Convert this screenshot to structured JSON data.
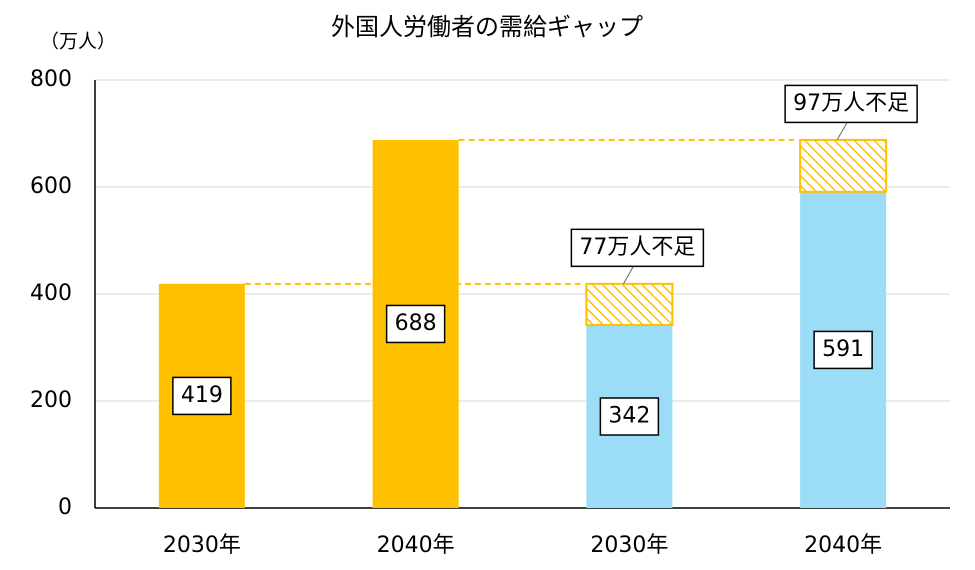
{
  "chart_data": {
    "type": "bar",
    "title": "外国人労働者の需給ギャップ",
    "y_unit_label": "（万人）",
    "categories": [
      "2030年",
      "2040年",
      "2030年",
      "2040年"
    ],
    "series": [
      {
        "color": "#FFC000",
        "values": [
          419,
          688,
          null,
          null
        ]
      },
      {
        "color": "#9BDDF6",
        "values": [
          null,
          null,
          342,
          591
        ]
      },
      {
        "color": "#FFC000",
        "fill": "hatch",
        "values": [
          null,
          null,
          77,
          97
        ],
        "value_labels": [
          null,
          null,
          "77万人不足",
          "97万人不足"
        ]
      }
    ],
    "ylim": [
      0,
      800
    ],
    "yticks": [
      0,
      200,
      400,
      600,
      800
    ],
    "grid": true
  }
}
